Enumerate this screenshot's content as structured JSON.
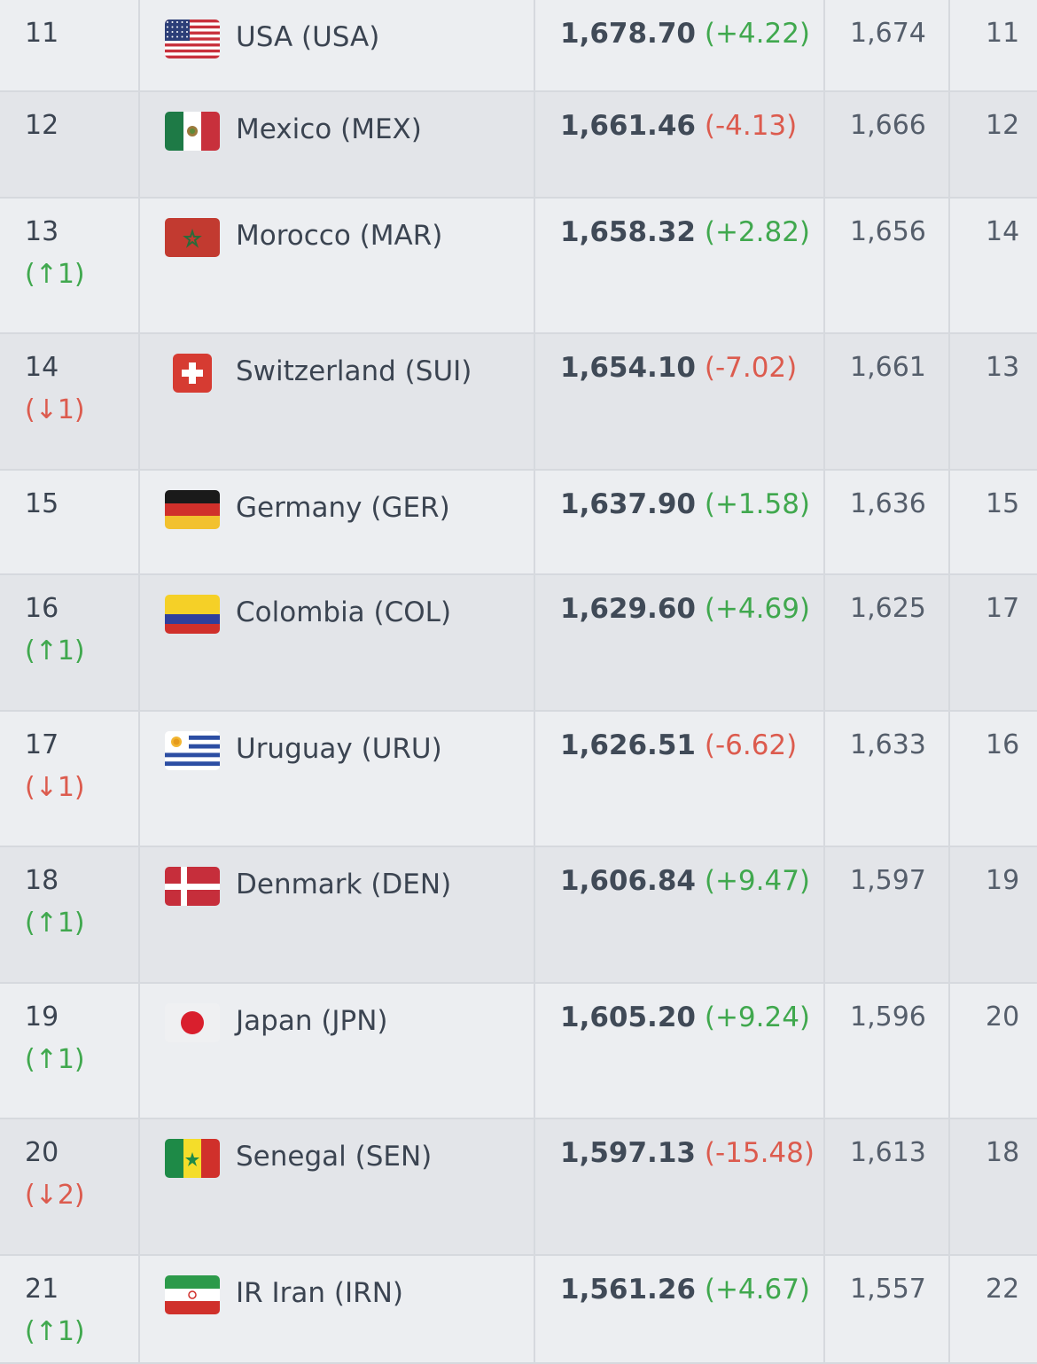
{
  "rows": [
    {
      "rank": "11",
      "move": "",
      "dir": "",
      "team": "USA (USA)",
      "flag": "usa-flag-icon",
      "points": "1,678.70",
      "change": "(+4.22)",
      "change_dir": "up",
      "prev_points": "1,674",
      "prev_rank": "11"
    },
    {
      "rank": "12",
      "move": "",
      "dir": "",
      "team": "Mexico (MEX)",
      "flag": "mexico-flag-icon",
      "points": "1,661.46",
      "change": "(-4.13)",
      "change_dir": "down",
      "prev_points": "1,666",
      "prev_rank": "12"
    },
    {
      "rank": "13",
      "move": "(↑1)",
      "dir": "up",
      "team": "Morocco (MAR)",
      "flag": "morocco-flag-icon",
      "points": "1,658.32",
      "change": "(+2.82)",
      "change_dir": "up",
      "prev_points": "1,656",
      "prev_rank": "14"
    },
    {
      "rank": "14",
      "move": "(↓1)",
      "dir": "down",
      "team": "Switzerland (SUI)",
      "flag": "switzerland-flag-icon",
      "points": "1,654.10",
      "change": "(-7.02)",
      "change_dir": "down",
      "prev_points": "1,661",
      "prev_rank": "13"
    },
    {
      "rank": "15",
      "move": "",
      "dir": "",
      "team": "Germany (GER)",
      "flag": "germany-flag-icon",
      "points": "1,637.90",
      "change": "(+1.58)",
      "change_dir": "up",
      "prev_points": "1,636",
      "prev_rank": "15"
    },
    {
      "rank": "16",
      "move": "(↑1)",
      "dir": "up",
      "team": "Colombia (COL)",
      "flag": "colombia-flag-icon",
      "points": "1,629.60",
      "change": "(+4.69)",
      "change_dir": "up",
      "prev_points": "1,625",
      "prev_rank": "17"
    },
    {
      "rank": "17",
      "move": "(↓1)",
      "dir": "down",
      "team": "Uruguay (URU)",
      "flag": "uruguay-flag-icon",
      "points": "1,626.51",
      "change": "(-6.62)",
      "change_dir": "down",
      "prev_points": "1,633",
      "prev_rank": "16"
    },
    {
      "rank": "18",
      "move": "(↑1)",
      "dir": "up",
      "team": "Denmark (DEN)",
      "flag": "denmark-flag-icon",
      "points": "1,606.84",
      "change": "(+9.47)",
      "change_dir": "up",
      "prev_points": "1,597",
      "prev_rank": "19"
    },
    {
      "rank": "19",
      "move": "(↑1)",
      "dir": "up",
      "team": "Japan (JPN)",
      "flag": "japan-flag-icon",
      "points": "1,605.20",
      "change": "(+9.24)",
      "change_dir": "up",
      "prev_points": "1,596",
      "prev_rank": "20"
    },
    {
      "rank": "20",
      "move": "(↓2)",
      "dir": "down",
      "team": "Senegal (SEN)",
      "flag": "senegal-flag-icon",
      "points": "1,597.13",
      "change": "(-15.48)",
      "change_dir": "down",
      "prev_points": "1,613",
      "prev_rank": "18"
    },
    {
      "rank": "21",
      "move": "(↑1)",
      "dir": "up",
      "team": "IR Iran (IRN)",
      "flag": "iran-flag-icon",
      "points": "1,561.26",
      "change": "(+4.67)",
      "change_dir": "up",
      "prev_points": "1,557",
      "prev_rank": "22"
    }
  ],
  "colors": {
    "up": "#40a84e",
    "down": "#dc5b4e",
    "row_odd": "#eceef1",
    "row_even": "#e3e5e9"
  }
}
